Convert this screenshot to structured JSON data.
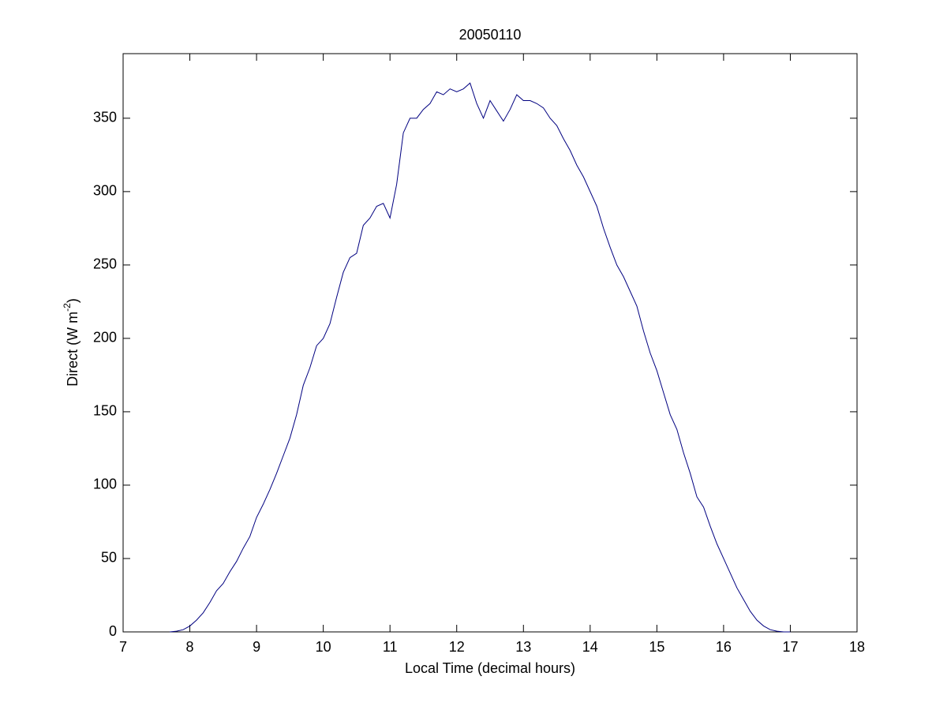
{
  "chart_data": {
    "type": "line",
    "title": "20050110",
    "xlabel": "Local Time (decimal hours)",
    "ylabel": [
      "Direct (W m",
      "-2",
      ")"
    ],
    "xlim": [
      7,
      18
    ],
    "ylim": [
      0,
      394
    ],
    "xticks": [
      7,
      8,
      9,
      10,
      11,
      12,
      13,
      14,
      15,
      16,
      17,
      18
    ],
    "yticks": [
      0,
      50,
      100,
      150,
      200,
      250,
      300,
      350
    ],
    "series": [
      {
        "color": "#000080",
        "x": [
          7.7,
          7.8,
          7.9,
          8.0,
          8.1,
          8.2,
          8.3,
          8.4,
          8.5,
          8.6,
          8.7,
          8.8,
          8.9,
          9.0,
          9.1,
          9.2,
          9.3,
          9.4,
          9.5,
          9.6,
          9.7,
          9.8,
          9.9,
          10.0,
          10.1,
          10.2,
          10.3,
          10.4,
          10.5,
          10.6,
          10.7,
          10.8,
          10.9,
          11.0,
          11.1,
          11.2,
          11.3,
          11.4,
          11.5,
          11.6,
          11.7,
          11.8,
          11.9,
          12.0,
          12.1,
          12.2,
          12.3,
          12.4,
          12.5,
          12.6,
          12.7,
          12.8,
          12.9,
          13.0,
          13.1,
          13.2,
          13.3,
          13.4,
          13.5,
          13.6,
          13.7,
          13.8,
          13.9,
          14.0,
          14.1,
          14.2,
          14.3,
          14.4,
          14.5,
          14.6,
          14.7,
          14.8,
          14.9,
          15.0,
          15.1,
          15.2,
          15.3,
          15.4,
          15.5,
          15.6,
          15.7,
          15.8,
          15.9,
          16.0,
          16.1,
          16.2,
          16.3,
          16.4,
          16.5,
          16.6,
          16.7,
          16.8,
          16.9,
          17.0
        ],
        "values": [
          0,
          0.5,
          1.5,
          4,
          8,
          13,
          20,
          28,
          33,
          41,
          48,
          57,
          65,
          78,
          87,
          97,
          108,
          120,
          132,
          148,
          168,
          180,
          195,
          200,
          210,
          228,
          245,
          255,
          258,
          277,
          282,
          290,
          292,
          282,
          305,
          340,
          350,
          350,
          356,
          360,
          368,
          366,
          370,
          368,
          370,
          374,
          360,
          350,
          362,
          355,
          348,
          356,
          366,
          362,
          362,
          360,
          357,
          350,
          345,
          336,
          328,
          318,
          310,
          300,
          290,
          275,
          262,
          250,
          242,
          232,
          222,
          205,
          190,
          178,
          163,
          148,
          138,
          122,
          108,
          92,
          85,
          72,
          60,
          50,
          40,
          30,
          22,
          14,
          8,
          4,
          1.5,
          0.5,
          0,
          0
        ]
      }
    ]
  }
}
